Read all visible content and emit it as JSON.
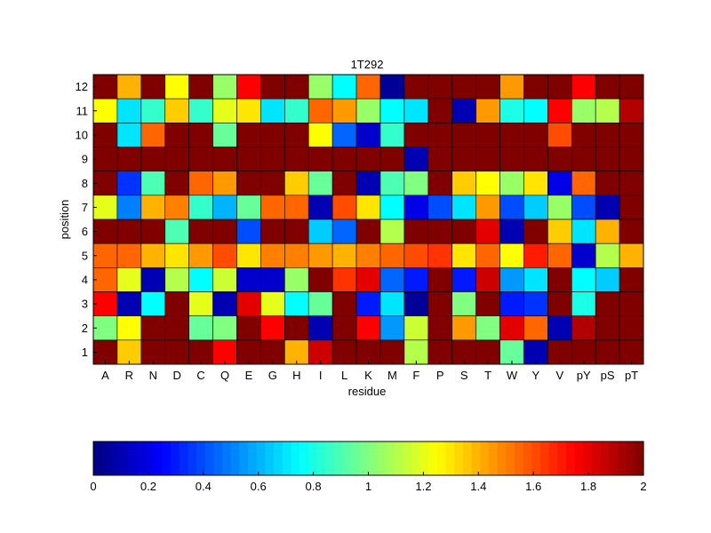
{
  "chart_data": {
    "type": "heatmap",
    "title": "1T292",
    "xlabel": "residue",
    "ylabel": "position",
    "x_categories": [
      "A",
      "R",
      "N",
      "D",
      "C",
      "Q",
      "E",
      "G",
      "H",
      "I",
      "L",
      "K",
      "M",
      "F",
      "P",
      "S",
      "T",
      "W",
      "Y",
      "V",
      "pY",
      "pS",
      "pT"
    ],
    "y_categories": [
      "1",
      "2",
      "3",
      "4",
      "5",
      "6",
      "7",
      "8",
      "9",
      "10",
      "11",
      "12"
    ],
    "values_row_order": "top-to-bottom, position 12 first",
    "values": [
      [
        2.0,
        1.4,
        2.0,
        1.25,
        2.0,
        1.05,
        1.75,
        2.0,
        2.0,
        1.05,
        0.75,
        1.55,
        0.05,
        2.0,
        2.0,
        2.0,
        2.0,
        1.45,
        2.0,
        2.0,
        1.75,
        2.0,
        2.0
      ],
      [
        1.25,
        0.7,
        0.85,
        1.35,
        0.85,
        1.2,
        1.3,
        0.7,
        0.85,
        1.55,
        1.45,
        1.05,
        0.75,
        0.7,
        2.0,
        0.1,
        1.45,
        0.8,
        0.75,
        1.75,
        1.05,
        1.1,
        1.9
      ],
      [
        2.0,
        0.7,
        1.55,
        2.0,
        2.0,
        0.95,
        2.0,
        2.0,
        2.0,
        1.25,
        0.45,
        0.15,
        0.85,
        2.0,
        2.0,
        2.0,
        2.0,
        2.0,
        2.0,
        1.6,
        2.0,
        2.0,
        2.0
      ],
      [
        2.0,
        2.0,
        2.0,
        2.0,
        2.0,
        2.0,
        2.0,
        2.0,
        2.0,
        2.0,
        2.0,
        2.0,
        2.0,
        0.1,
        2.0,
        2.0,
        2.0,
        2.0,
        2.0,
        2.0,
        2.0,
        2.0,
        2.0
      ],
      [
        2.0,
        0.35,
        0.9,
        2.0,
        1.55,
        1.45,
        2.0,
        2.0,
        1.35,
        0.95,
        2.0,
        0.1,
        0.9,
        1.0,
        2.0,
        1.35,
        1.25,
        1.05,
        1.3,
        0.2,
        1.55,
        2.0,
        2.0
      ],
      [
        1.2,
        0.5,
        1.4,
        1.5,
        0.85,
        0.6,
        0.95,
        1.55,
        1.55,
        0.1,
        1.6,
        1.3,
        0.75,
        0.2,
        0.4,
        0.7,
        1.45,
        0.4,
        0.65,
        1.05,
        0.4,
        0.1,
        2.0
      ],
      [
        2.0,
        2.0,
        2.0,
        0.9,
        2.0,
        2.0,
        0.4,
        2.0,
        2.0,
        0.65,
        0.45,
        2.0,
        1.1,
        2.0,
        2.0,
        2.0,
        1.8,
        0.1,
        2.0,
        1.35,
        0.7,
        1.4,
        2.0
      ],
      [
        1.55,
        1.55,
        1.4,
        1.3,
        1.45,
        1.6,
        1.3,
        1.5,
        1.5,
        1.45,
        1.4,
        1.5,
        1.55,
        1.6,
        1.65,
        1.3,
        1.55,
        1.25,
        1.7,
        1.55,
        0.15,
        1.1,
        1.4
      ],
      [
        1.55,
        1.2,
        0.1,
        1.1,
        0.75,
        1.15,
        0.15,
        0.15,
        1.05,
        2.0,
        1.65,
        1.8,
        0.45,
        0.3,
        2.0,
        0.3,
        1.85,
        0.55,
        0.7,
        2.0,
        0.75,
        0.65,
        2.0
      ],
      [
        1.75,
        0.1,
        0.75,
        2.0,
        1.2,
        0.1,
        1.8,
        1.2,
        0.75,
        0.95,
        2.0,
        0.3,
        0.7,
        0.05,
        2.0,
        1.0,
        2.0,
        0.3,
        0.35,
        2.0,
        0.8,
        2.0,
        2.0
      ],
      [
        1.0,
        1.25,
        2.0,
        2.0,
        0.95,
        1.0,
        2.0,
        1.75,
        2.0,
        0.1,
        2.0,
        1.75,
        0.55,
        1.15,
        2.0,
        1.45,
        1.0,
        1.8,
        1.55,
        0.1,
        1.9,
        2.0,
        2.0
      ],
      [
        2.0,
        1.35,
        2.0,
        2.0,
        2.0,
        1.75,
        2.0,
        2.0,
        1.4,
        1.85,
        2.0,
        2.0,
        2.0,
        1.1,
        2.0,
        2.0,
        2.0,
        0.95,
        0.1,
        2.0,
        2.0,
        2.0,
        2.0
      ]
    ],
    "colormap": "jet",
    "clim": [
      0,
      2
    ],
    "colorbar": {
      "orientation": "horizontal",
      "position": "bottom",
      "ticks": [
        "0",
        "0.2",
        "0.4",
        "0.6",
        "0.8",
        "1",
        "1.2",
        "1.4",
        "1.6",
        "1.8",
        "2"
      ]
    },
    "grid": false
  }
}
